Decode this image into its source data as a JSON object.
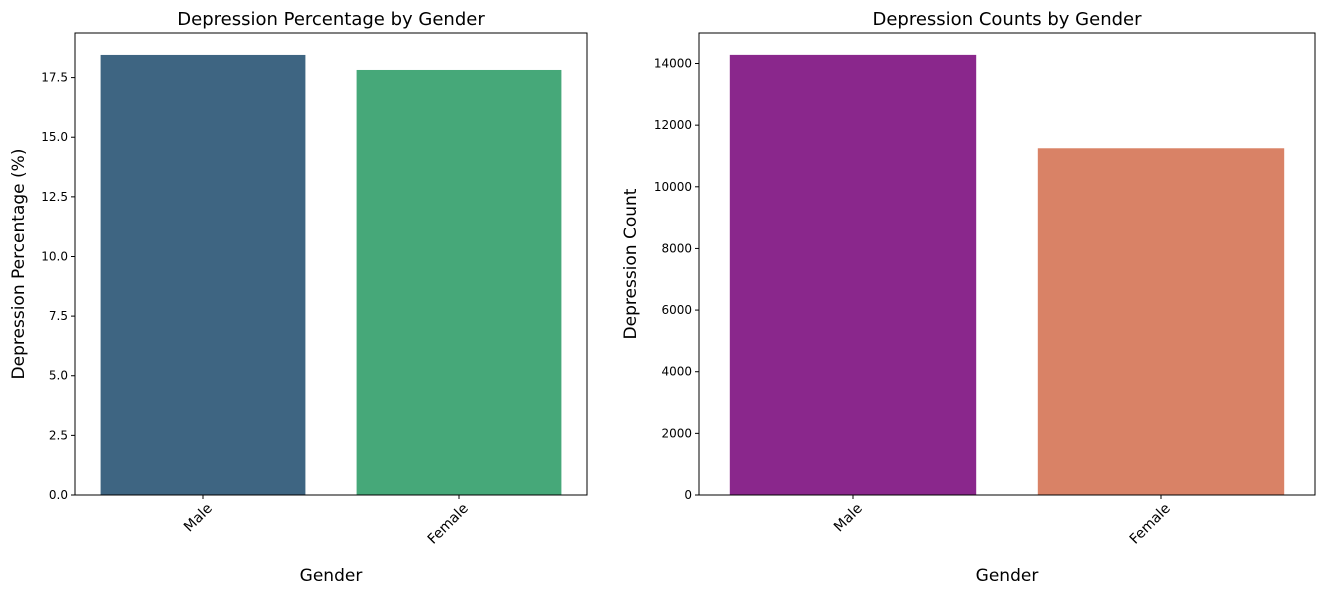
{
  "chart_data": [
    {
      "type": "bar",
      "title": "Depression Percentage by Gender",
      "xlabel": "Gender",
      "ylabel": "Depression Percentage (%)",
      "categories": [
        "Male",
        "Female"
      ],
      "values": [
        18.45,
        17.82
      ],
      "colors": [
        "#3e6582",
        "#46a879"
      ],
      "ylim": [
        0,
        19.37
      ],
      "yticks": [
        0,
        2.5,
        5,
        7.5,
        10,
        12.5,
        15,
        17.5
      ],
      "ytick_labels": [
        "0.0",
        "2.5",
        "5.0",
        "7.5",
        "10.0",
        "12.5",
        "15.0",
        "17.5"
      ],
      "xtick_rotation": 45,
      "grid": false
    },
    {
      "type": "bar",
      "title": "Depression Counts by Gender",
      "xlabel": "Gender",
      "ylabel": "Depression Count",
      "categories": [
        "Male",
        "Female"
      ],
      "values": [
        14280,
        11250
      ],
      "colors": [
        "#8a278c",
        "#d98266"
      ],
      "ylim": [
        0,
        14990
      ],
      "yticks": [
        0,
        2000,
        4000,
        6000,
        8000,
        10000,
        12000,
        14000
      ],
      "ytick_labels": [
        "0",
        "2000",
        "4000",
        "6000",
        "8000",
        "10000",
        "12000",
        "14000"
      ],
      "xtick_rotation": 45,
      "grid": false
    }
  ]
}
